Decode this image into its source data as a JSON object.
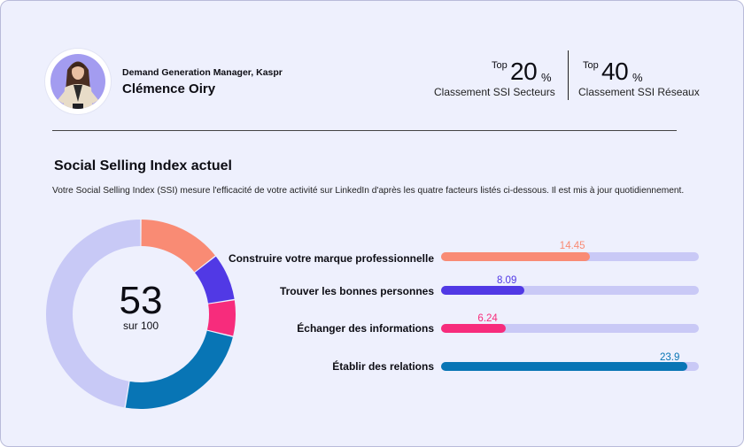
{
  "profile": {
    "role": "Demand Generation Manager, Kaspr",
    "name": "Clémence Oiry"
  },
  "stats": [
    {
      "prefix": "Top",
      "value": "20",
      "unit": "%",
      "label": "Classement SSI Secteurs"
    },
    {
      "prefix": "Top",
      "value": "40",
      "unit": "%",
      "label": "Classement SSI Réseaux"
    }
  ],
  "ssi": {
    "title": "Social Selling Index actuel",
    "description": "Votre Social Selling Index (SSI) mesure l'efficacité de votre activité sur LinkedIn d'après les quatre facteurs listés ci-dessous. Il est mis à jour quotidiennement.",
    "score": "53",
    "score_sub": "sur 100",
    "max_score": 100,
    "max_factor": 25,
    "remainder_color": "#c8c9f6",
    "factors": [
      {
        "label": "Construire votre marque professionnelle",
        "value": 14.45,
        "display": "14.45",
        "color": "#f98b74"
      },
      {
        "label": "Trouver les bonnes personnes",
        "value": 8.09,
        "display": "8.09",
        "color": "#5139e5"
      },
      {
        "label": "Échanger des informations",
        "value": 6.24,
        "display": "6.24",
        "color": "#f72c7c"
      },
      {
        "label": "Établir des relations",
        "value": 23.9,
        "display": "23.9",
        "color": "#0875b5"
      }
    ]
  }
}
